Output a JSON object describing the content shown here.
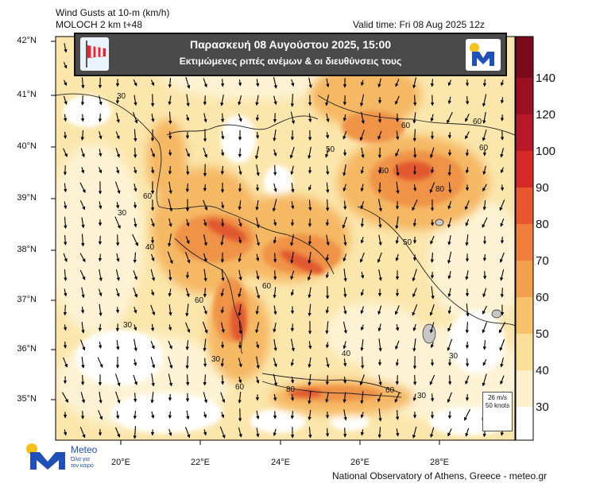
{
  "header": {
    "variable": "Wind Gusts at 10-m (km/h)",
    "model": "MOLOCH 2 km t+48",
    "valid_time": "Valid time: Fri 08 Aug 2025 12z"
  },
  "banner": {
    "title": "Παρασκευή 08 Αυγούστου 2025, 15:00",
    "subtitle": "Εκτιμώμενες ριπές ανέμων & οι διευθύνσεις τους"
  },
  "axes": {
    "lat_labels": [
      "42°N",
      "41°N",
      "40°N",
      "39°N",
      "38°N",
      "37°N",
      "36°N",
      "35°N"
    ],
    "lon_labels": [
      "20°E",
      "22°E",
      "24°E",
      "26°E",
      "28°E"
    ]
  },
  "colorbar": {
    "labels": [
      "140",
      "120",
      "100",
      "90",
      "80",
      "70",
      "60",
      "50",
      "40",
      "30"
    ],
    "colors": [
      "#7a0a1a",
      "#9a1020",
      "#b81828",
      "#d62a28",
      "#e8562e",
      "#ef7f3a",
      "#f3a04e",
      "#f7c26a",
      "#fadf96",
      "#fdf1cc",
      "#ffffff"
    ]
  },
  "contour_labels": [
    "30",
    "40",
    "50",
    "60",
    "80"
  ],
  "vector_legend": {
    "speed_ms": "26 m/s",
    "speed_knots": "50 knots"
  },
  "logo": {
    "name": "Meteo",
    "tagline_1": "Όλα για",
    "tagline_2": "τον καιρό",
    "brand_blue": "#1f4fb8",
    "brand_yellow": "#f6c21a"
  },
  "footer": {
    "credit": "National Observatory of Athens, Greece - meteo.gr"
  }
}
